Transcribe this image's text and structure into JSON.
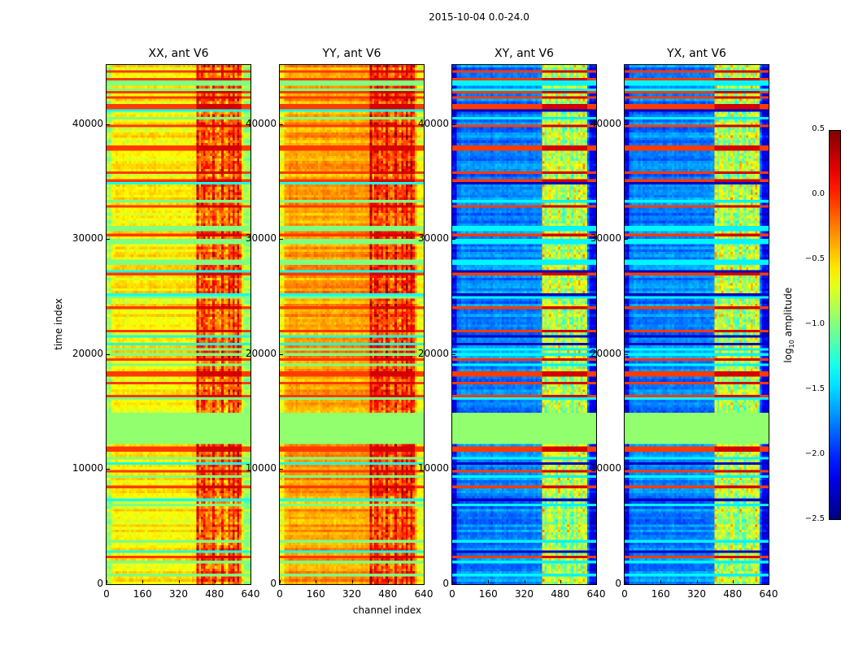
{
  "chart_data": {
    "type": "heatmap",
    "title": "2015-10-04 0.0-24.0",
    "xlabel": "channel index",
    "ylabel": "time index",
    "xlim": [
      0,
      640
    ],
    "ylim": [
      0,
      45150
    ],
    "xticks": [
      "0",
      "160",
      "320",
      "480",
      "640"
    ],
    "xtick_values": [
      0,
      160,
      320,
      480,
      640
    ],
    "yticks": [
      "0",
      "10000",
      "20000",
      "30000",
      "40000"
    ],
    "ytick_values": [
      0,
      10000,
      20000,
      30000,
      40000
    ],
    "colormap": "jet",
    "flagged_time_range": [
      12200,
      14800
    ],
    "active_channel_range": [
      400,
      600
    ],
    "panels": [
      {
        "title": "XX, ant V6",
        "base_level": -0.6,
        "active_level": -0.1
      },
      {
        "title": "YY, ant V6",
        "base_level": -0.35,
        "active_level": 0.0
      },
      {
        "title": "XY, ant V6",
        "base_level": -1.75,
        "active_level": -0.8
      },
      {
        "title": "YX, ant V6",
        "base_level": -1.75,
        "active_level": -0.8
      }
    ],
    "colorbar": {
      "label": "log10 amplitude",
      "label_main": "log",
      "label_sub": "10",
      "label_rest": " amplitude",
      "range": [
        -2.5,
        0.5
      ],
      "ticks": [
        "0.5",
        "0.0",
        "−0.5",
        "−1.0",
        "−1.5",
        "−2.0",
        "−2.5"
      ],
      "tick_values": [
        0.5,
        0.0,
        -0.5,
        -1.0,
        -1.5,
        -2.0,
        -2.5
      ]
    }
  }
}
